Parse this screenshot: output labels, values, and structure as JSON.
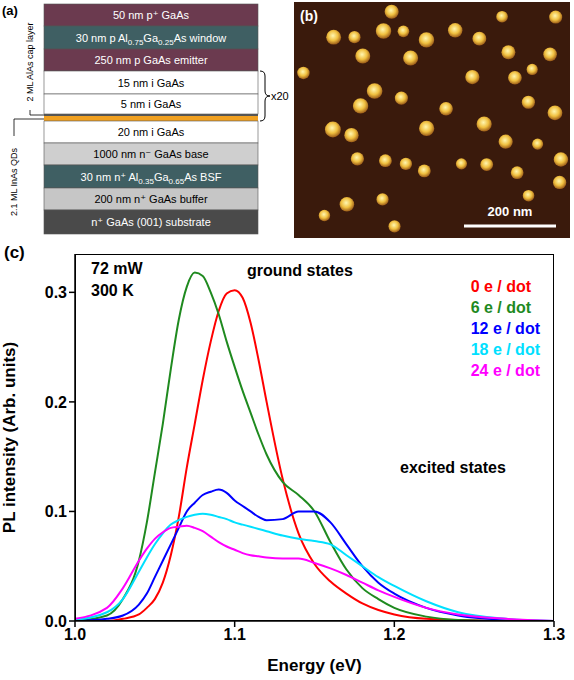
{
  "figure_a": {
    "panel_label": "(a)",
    "layers": [
      "50 nm p⁺ GaAs",
      "30 nm p Al0.75Ga0.25As window",
      "250 nm p GaAs emitter",
      "15 nm i GaAs",
      "5 nm i GaAs",
      "20 nm i GaAs",
      "1000 nm n⁻ GaAs base",
      "30 nm n⁺ Al0.35Ga0.65As BSF",
      "200 nm n⁺ GaAs buffer",
      "n⁺ GaAs (001) substrate"
    ],
    "side_labels": {
      "cap_layer": "2 ML AlAs cap layer",
      "qds": "2.1 ML InAs QDs"
    },
    "repeat": "x20"
  },
  "figure_b": {
    "panel_label": "(b)",
    "scale_bar": "200 nm"
  },
  "chart_data": {
    "type": "line",
    "panel_label": "(c)",
    "x_label": "Energy (eV)",
    "y_label": "PL intensity (Arb. units)",
    "annotations": [
      "72 mW",
      "300 K",
      "ground states",
      "excited states"
    ],
    "x": [
      1.0,
      1.02,
      1.03,
      1.04,
      1.045,
      1.05,
      1.055,
      1.06,
      1.065,
      1.07,
      1.075,
      1.08,
      1.085,
      1.09,
      1.095,
      1.1,
      1.105,
      1.11,
      1.115,
      1.12,
      1.13,
      1.14,
      1.15,
      1.16,
      1.17,
      1.18,
      1.19,
      1.2,
      1.22,
      1.24,
      1.27,
      1.3
    ],
    "series": [
      {
        "name": "0 e / dot",
        "color": "#ff0000",
        "values": [
          0,
          0,
          0.002,
          0.006,
          0.012,
          0.02,
          0.035,
          0.06,
          0.095,
          0.14,
          0.18,
          0.22,
          0.255,
          0.283,
          0.299,
          0.302,
          0.295,
          0.272,
          0.238,
          0.2,
          0.13,
          0.08,
          0.052,
          0.036,
          0.025,
          0.016,
          0.01,
          0.006,
          0.002,
          0.001,
          0,
          0
        ]
      },
      {
        "name": "6 e / dot",
        "color": "#1f8a1f",
        "values": [
          0,
          0.005,
          0.02,
          0.055,
          0.09,
          0.135,
          0.18,
          0.23,
          0.275,
          0.305,
          0.318,
          0.315,
          0.3,
          0.28,
          0.255,
          0.232,
          0.21,
          0.19,
          0.17,
          0.152,
          0.127,
          0.115,
          0.1,
          0.072,
          0.047,
          0.03,
          0.02,
          0.012,
          0.004,
          0.001,
          0,
          0
        ]
      },
      {
        "name": "12 e / dot",
        "color": "#0000ff",
        "values": [
          0,
          0.002,
          0.005,
          0.015,
          0.025,
          0.04,
          0.055,
          0.07,
          0.085,
          0.1,
          0.108,
          0.115,
          0.118,
          0.12,
          0.117,
          0.11,
          0.105,
          0.1,
          0.095,
          0.092,
          0.093,
          0.1,
          0.1,
          0.09,
          0.07,
          0.05,
          0.035,
          0.025,
          0.012,
          0.005,
          0.001,
          0
        ]
      },
      {
        "name": "18 e / dot",
        "color": "#00e0ff",
        "values": [
          0.001,
          0.008,
          0.02,
          0.045,
          0.058,
          0.07,
          0.08,
          0.088,
          0.092,
          0.095,
          0.097,
          0.098,
          0.097,
          0.095,
          0.093,
          0.09,
          0.088,
          0.086,
          0.084,
          0.082,
          0.078,
          0.075,
          0.073,
          0.07,
          0.06,
          0.05,
          0.04,
          0.032,
          0.018,
          0.008,
          0.002,
          0
        ]
      },
      {
        "name": "24 e / dot",
        "color": "#ff00ff",
        "values": [
          0.002,
          0.012,
          0.03,
          0.055,
          0.066,
          0.075,
          0.081,
          0.085,
          0.086,
          0.087,
          0.085,
          0.082,
          0.077,
          0.072,
          0.068,
          0.065,
          0.062,
          0.06,
          0.059,
          0.058,
          0.057,
          0.057,
          0.053,
          0.048,
          0.042,
          0.035,
          0.028,
          0.022,
          0.012,
          0.006,
          0.002,
          0
        ]
      }
    ],
    "xlim": [
      1.0,
      1.3
    ],
    "xticks": [
      {
        "value": 1.0,
        "label": "1.0"
      },
      1.1,
      1.2,
      1.3
    ],
    "ylim": [
      0,
      0.335
    ],
    "yticks": [
      {
        "value": 0,
        "label": "0.0"
      },
      0.1,
      0.2,
      0.3
    ],
    "legend": "upper right",
    "grid": false
  }
}
